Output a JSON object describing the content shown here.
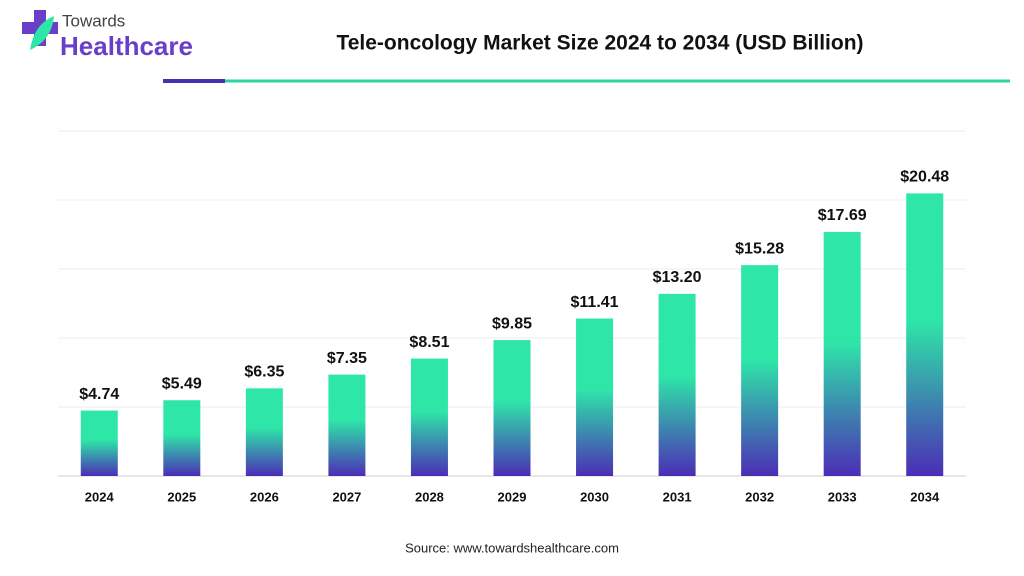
{
  "logo": {
    "line1": "Towards",
    "line2": "Healthcare"
  },
  "source": "Source: www.towardshealthcare.com",
  "chart_data": {
    "type": "bar",
    "title": "Tele-oncology Market Size 2024 to 2034 (USD Billion)",
    "categories": [
      "2024",
      "2025",
      "2026",
      "2027",
      "2028",
      "2029",
      "2030",
      "2031",
      "2032",
      "2033",
      "2034"
    ],
    "values": [
      4.74,
      5.49,
      6.35,
      7.35,
      8.51,
      9.85,
      11.41,
      13.2,
      15.28,
      17.69,
      20.48
    ],
    "value_labels": [
      "$4.74",
      "$5.49",
      "$6.35",
      "$7.35",
      "$8.51",
      "$9.85",
      "$11.41",
      "$13.20",
      "$15.28",
      "$17.69",
      "$20.48"
    ],
    "gradient": [
      "#2ee6a8",
      "#4b2db6"
    ],
    "ylim": [
      0,
      25
    ],
    "yticks": [
      0,
      5,
      10,
      15,
      20,
      25
    ],
    "grid": true
  }
}
